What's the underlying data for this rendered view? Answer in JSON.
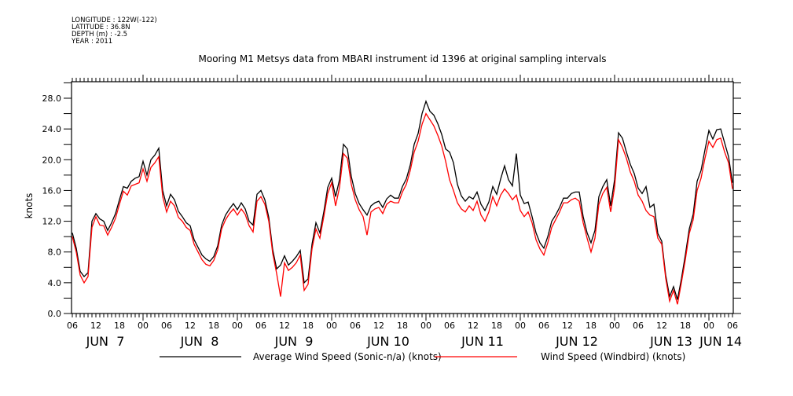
{
  "header": {
    "metadata_lines": [
      "LONGITUDE : 122W(-122)",
      "LATITUDE : 36.8N",
      "DEPTH (m) : -2.5",
      "YEAR : 2011"
    ]
  },
  "chart_data": {
    "type": "line",
    "title": "Mooring M1 Metsys data from MBARI instrument id 1396 at original sampling intervals",
    "xlabel": "",
    "ylabel": "knots",
    "ylim": [
      0,
      30
    ],
    "y_ticks": [
      {
        "value": 0,
        "label": "0.0"
      },
      {
        "value": 4,
        "label": "4.0"
      },
      {
        "value": 8,
        "label": "8.0"
      },
      {
        "value": 12,
        "label": "12.0"
      },
      {
        "value": 16,
        "label": "16.0"
      },
      {
        "value": 20,
        "label": "20.0"
      },
      {
        "value": 24,
        "label": "24.0"
      },
      {
        "value": 28,
        "label": "28.0"
      }
    ],
    "x_unit": "hours since JUN 7 06:00 (2011)",
    "xlim": [
      0,
      168
    ],
    "x_hour_ticks": [
      {
        "value": 0,
        "label": "06"
      },
      {
        "value": 6,
        "label": "12"
      },
      {
        "value": 12,
        "label": "18"
      },
      {
        "value": 18,
        "label": "00"
      },
      {
        "value": 24,
        "label": "06"
      },
      {
        "value": 30,
        "label": "12"
      },
      {
        "value": 36,
        "label": "18"
      },
      {
        "value": 42,
        "label": "00"
      },
      {
        "value": 48,
        "label": "06"
      },
      {
        "value": 54,
        "label": "12"
      },
      {
        "value": 60,
        "label": "18"
      },
      {
        "value": 66,
        "label": "00"
      },
      {
        "value": 72,
        "label": "06"
      },
      {
        "value": 78,
        "label": "12"
      },
      {
        "value": 84,
        "label": "18"
      },
      {
        "value": 90,
        "label": "00"
      },
      {
        "value": 96,
        "label": "06"
      },
      {
        "value": 102,
        "label": "12"
      },
      {
        "value": 108,
        "label": "18"
      },
      {
        "value": 114,
        "label": "00"
      },
      {
        "value": 120,
        "label": "06"
      },
      {
        "value": 126,
        "label": "12"
      },
      {
        "value": 132,
        "label": "18"
      },
      {
        "value": 138,
        "label": "00"
      },
      {
        "value": 144,
        "label": "06"
      },
      {
        "value": 150,
        "label": "12"
      },
      {
        "value": 156,
        "label": "18"
      },
      {
        "value": 162,
        "label": "00"
      },
      {
        "value": 168,
        "label": "06"
      }
    ],
    "x_date_labels": [
      {
        "value": 6,
        "label": "JUN  7"
      },
      {
        "value": 30,
        "label": "JUN  8"
      },
      {
        "value": 54,
        "label": "JUN  9"
      },
      {
        "value": 78,
        "label": "JUN 10"
      },
      {
        "value": 102,
        "label": "JUN 11"
      },
      {
        "value": 126,
        "label": "JUN 12"
      },
      {
        "value": 150,
        "label": "JUN 13"
      },
      {
        "value": 168,
        "label": "JUN 14"
      }
    ],
    "x": [
      0,
      1,
      2,
      3,
      4,
      5,
      6,
      7,
      8,
      9,
      10,
      11,
      12,
      13,
      14,
      15,
      16,
      17,
      18,
      19,
      20,
      21,
      22,
      23,
      24,
      25,
      26,
      27,
      28,
      29,
      30,
      31,
      32,
      33,
      34,
      35,
      36,
      37,
      38,
      39,
      40,
      41,
      42,
      43,
      44,
      45,
      46,
      47,
      48,
      49,
      50,
      51,
      52,
      53,
      54,
      55,
      56,
      57,
      58,
      59,
      60,
      61,
      62,
      63,
      64,
      65,
      66,
      67,
      68,
      69,
      70,
      71,
      72,
      73,
      74,
      75,
      76,
      77,
      78,
      79,
      80,
      81,
      82,
      83,
      84,
      85,
      86,
      87,
      88,
      89,
      90,
      91,
      92,
      93,
      94,
      95,
      96,
      97,
      98,
      99,
      100,
      101,
      102,
      103,
      104,
      105,
      106,
      107,
      108,
      109,
      110,
      111,
      112,
      113,
      114,
      115,
      116,
      117,
      118,
      119,
      120,
      121,
      122,
      123,
      124,
      125,
      126,
      127,
      128,
      129,
      130,
      131,
      132,
      133,
      134,
      135,
      136,
      137,
      138,
      139,
      140,
      141,
      142,
      143,
      144,
      145,
      146,
      147,
      148,
      149,
      150,
      151,
      152,
      153,
      154,
      155,
      156,
      157,
      158,
      159,
      160,
      161,
      162,
      163,
      164,
      165,
      166,
      167,
      168
    ],
    "series": [
      {
        "name": "Average Wind Speed (Sonic-n/a) (knots)",
        "color": "#000000",
        "values": [
          10.5,
          8.5,
          5.5,
          4.8,
          5.3,
          12.0,
          13.0,
          12.3,
          12.0,
          10.8,
          11.8,
          13.0,
          14.8,
          16.5,
          16.3,
          17.2,
          17.6,
          17.8,
          19.8,
          18.0,
          20.0,
          20.6,
          21.5,
          16.0,
          14.0,
          15.5,
          14.8,
          13.3,
          12.6,
          11.8,
          11.4,
          9.6,
          8.6,
          7.6,
          7.1,
          6.8,
          7.4,
          8.8,
          11.5,
          12.8,
          13.6,
          14.3,
          13.5,
          14.4,
          13.6,
          12.0,
          11.5,
          15.5,
          16.0,
          14.8,
          12.5,
          8.3,
          5.8,
          6.3,
          7.5,
          6.3,
          6.8,
          7.4,
          8.2,
          4.0,
          4.5,
          9.0,
          11.8,
          10.5,
          13.2,
          16.4,
          17.6,
          15.2,
          17.4,
          22.0,
          21.4,
          17.8,
          15.6,
          14.3,
          13.5,
          12.8,
          14.0,
          14.4,
          14.6,
          13.8,
          14.9,
          15.4,
          15.0,
          15.0,
          16.5,
          17.5,
          19.3,
          22.0,
          23.4,
          26.0,
          27.6,
          26.3,
          25.8,
          24.7,
          23.3,
          21.4,
          21.0,
          19.6,
          16.8,
          15.3,
          14.6,
          15.2,
          14.9,
          15.8,
          14.2,
          13.4,
          14.5,
          16.5,
          15.5,
          17.5,
          19.2,
          17.4,
          16.6,
          20.8,
          15.4,
          14.3,
          14.5,
          12.6,
          10.5,
          9.2,
          8.5,
          10.0,
          12.0,
          12.8,
          13.8,
          15.0,
          15.0,
          15.6,
          15.8,
          15.8,
          12.6,
          10.5,
          9.2,
          10.8,
          15.2,
          16.5,
          17.4,
          14.0,
          17.4,
          23.5,
          22.8,
          21.0,
          19.4,
          18.2,
          16.3,
          15.6,
          16.5,
          13.8,
          14.2,
          10.4,
          9.4,
          5.0,
          2.2,
          3.5,
          1.8,
          4.5,
          7.6,
          11.0,
          12.9,
          17.2,
          18.6,
          21.3,
          23.8,
          22.7,
          23.9,
          24.0,
          22.2,
          20.4,
          17.0
        ]
      },
      {
        "name": "Wind Speed (Windbird) (knots)",
        "color": "#ff0000",
        "values": [
          10.0,
          8.0,
          5.0,
          4.0,
          4.8,
          11.2,
          12.6,
          11.5,
          11.4,
          10.2,
          11.2,
          12.4,
          14.2,
          15.9,
          15.4,
          16.6,
          16.8,
          17.0,
          18.8,
          17.2,
          19.0,
          19.6,
          20.4,
          15.2,
          13.2,
          14.6,
          14.0,
          12.5,
          12.0,
          11.2,
          10.8,
          9.0,
          8.0,
          7.0,
          6.4,
          6.2,
          6.9,
          8.3,
          11.0,
          12.2,
          13.0,
          13.6,
          12.8,
          13.6,
          12.9,
          11.4,
          10.6,
          14.6,
          15.2,
          14.2,
          12.0,
          7.8,
          5.2,
          2.2,
          6.6,
          5.6,
          6.0,
          6.6,
          7.6,
          3.0,
          3.8,
          8.4,
          11.0,
          9.8,
          12.6,
          15.6,
          17.0,
          14.0,
          16.4,
          20.8,
          20.2,
          16.8,
          14.8,
          13.5,
          12.6,
          10.2,
          13.2,
          13.6,
          13.8,
          13.0,
          14.2,
          14.6,
          14.4,
          14.4,
          15.8,
          16.8,
          18.6,
          21.0,
          22.4,
          24.6,
          26.0,
          25.2,
          24.4,
          23.2,
          21.8,
          19.8,
          17.4,
          16.0,
          14.4,
          13.6,
          13.2,
          14.0,
          13.4,
          14.6,
          12.8,
          12.0,
          13.2,
          15.2,
          14.0,
          15.4,
          16.2,
          15.6,
          14.8,
          15.4,
          13.4,
          12.6,
          13.2,
          11.8,
          9.6,
          8.4,
          7.6,
          9.2,
          11.2,
          12.2,
          13.2,
          14.4,
          14.4,
          14.8,
          15.0,
          14.6,
          11.8,
          9.8,
          8.0,
          9.8,
          14.2,
          15.6,
          16.4,
          13.2,
          16.4,
          22.6,
          21.6,
          20.2,
          18.4,
          17.2,
          15.4,
          14.6,
          13.4,
          12.8,
          12.6,
          9.8,
          9.0,
          4.6,
          1.6,
          3.0,
          1.2,
          4.0,
          7.0,
          10.4,
          12.2,
          16.0,
          17.6,
          20.2,
          22.4,
          21.6,
          22.6,
          22.8,
          21.0,
          19.6,
          16.2
        ]
      }
    ],
    "legend": [
      {
        "label": "Average Wind Speed (Sonic-n/a) (knots)",
        "color": "#000000"
      },
      {
        "label": "Wind Speed (Windbird) (knots)",
        "color": "#ff0000"
      }
    ],
    "legend_placement": "bottom",
    "grid": false
  }
}
